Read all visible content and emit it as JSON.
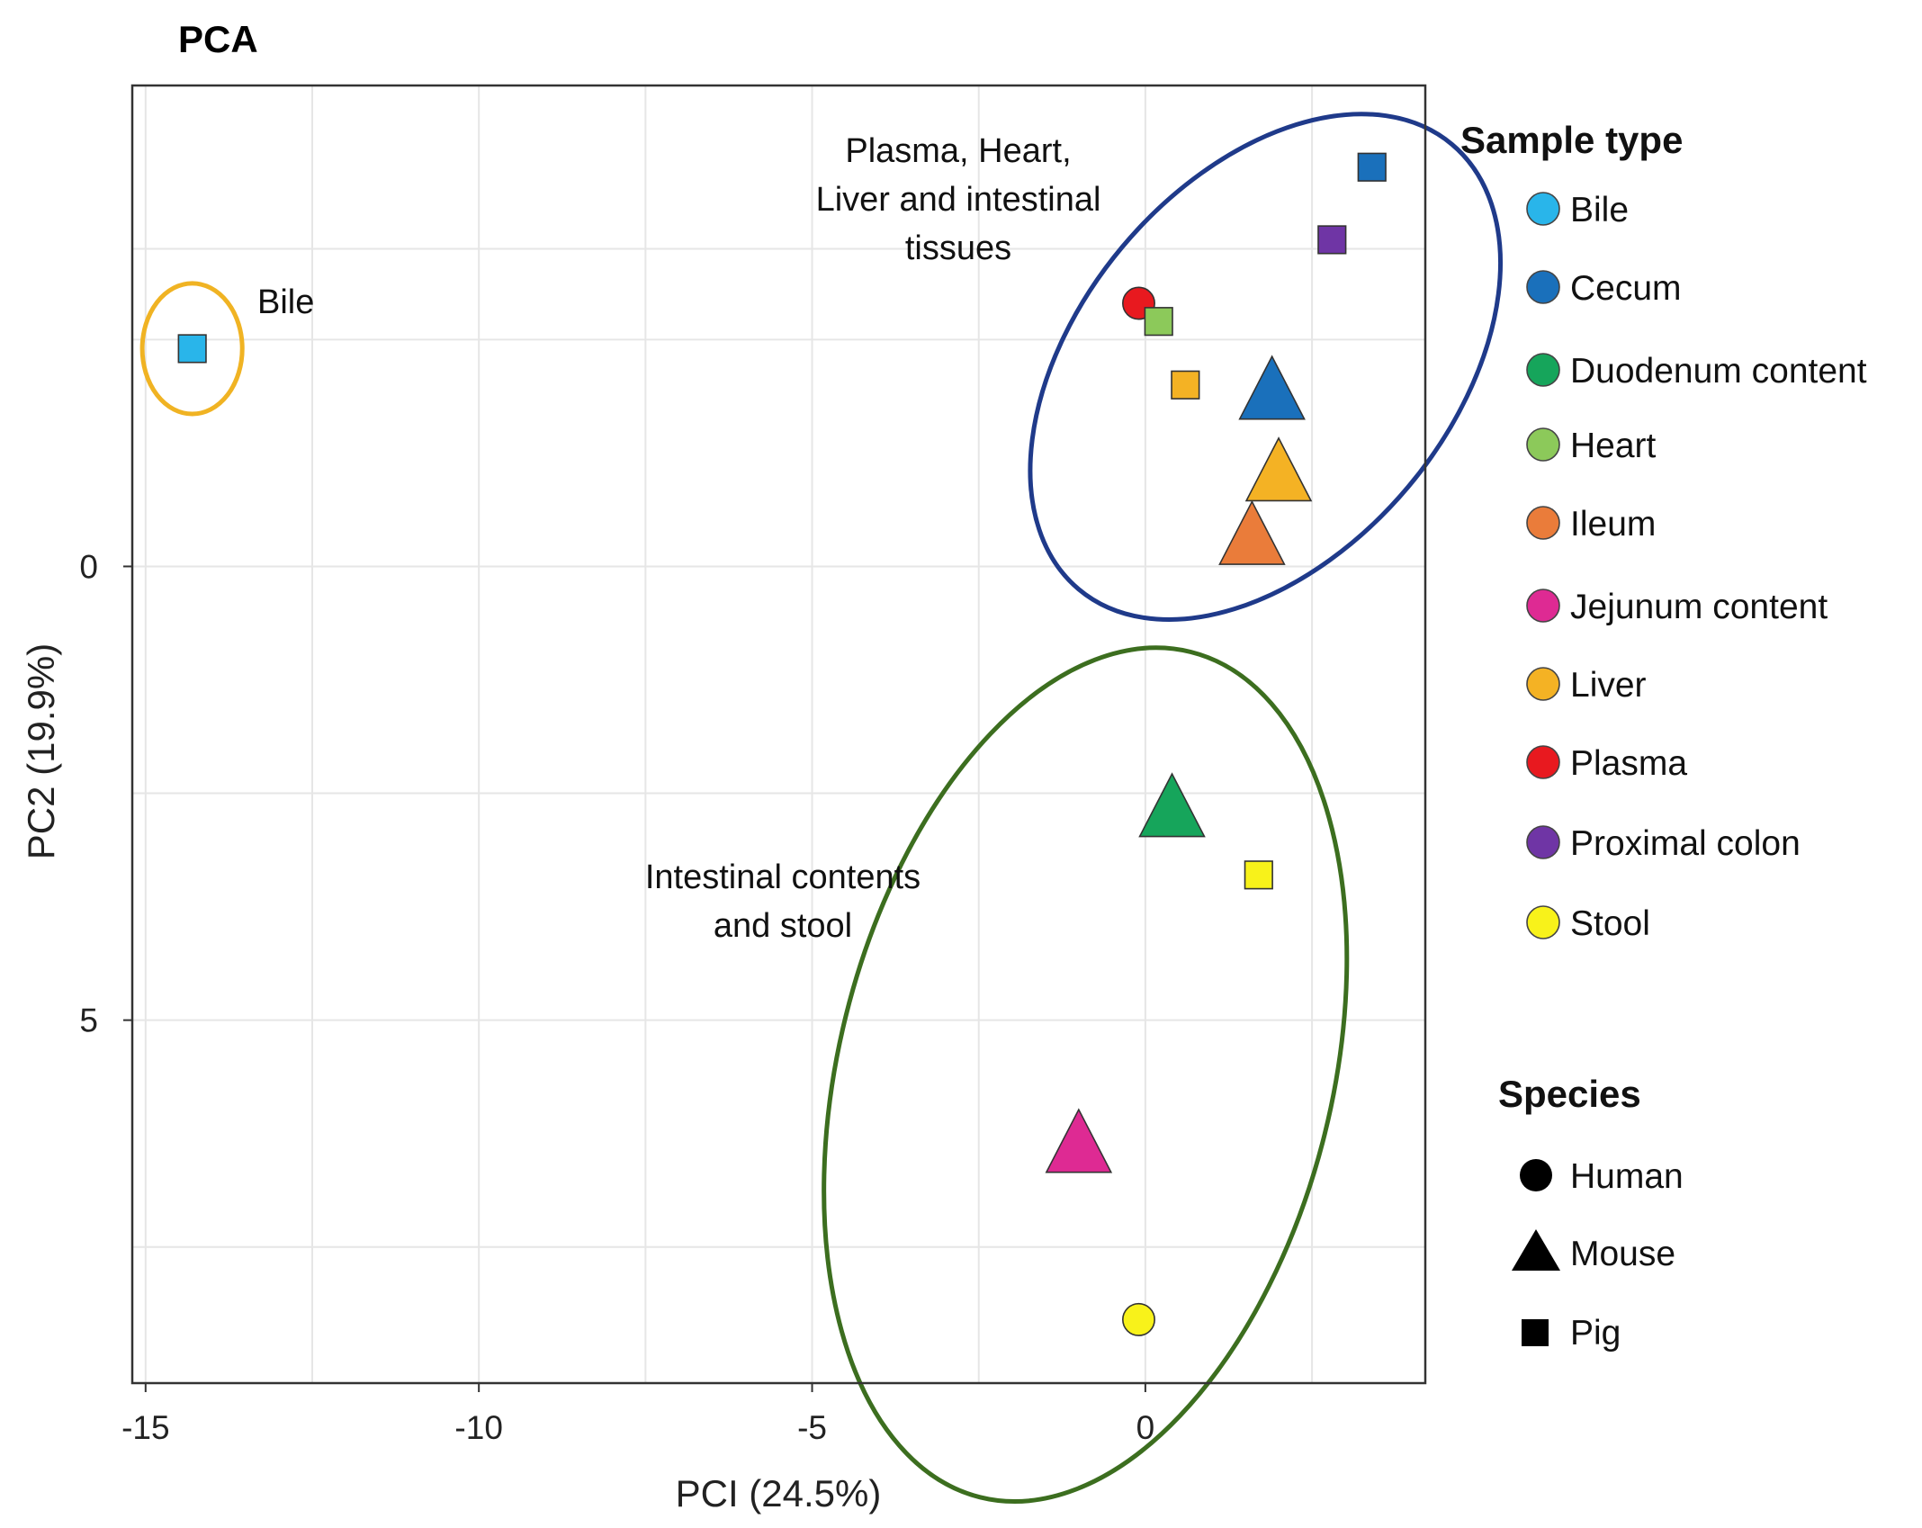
{
  "chart_data": {
    "type": "scatter",
    "title": "PCA",
    "xlabel": "PCI (24.5%)",
    "ylabel": "PC2 (19.9%)",
    "xlim": [
      -15.2,
      4.2
    ],
    "ylim": [
      9,
      -5.3
    ],
    "y_inverted": true,
    "grid": true,
    "x_ticks": [
      -15,
      -10,
      -5,
      0
    ],
    "x_tick_labels": [
      "-15",
      "-10",
      "-5",
      "0"
    ],
    "y_ticks": [
      0,
      5
    ],
    "y_tick_labels": [
      "0",
      "5"
    ],
    "points": [
      {
        "sample": "Bile",
        "species": "Pig",
        "x": -14.3,
        "y": -2.4
      },
      {
        "sample": "Cecum",
        "species": "Pig",
        "x": 3.4,
        "y": -4.4
      },
      {
        "sample": "Proximal colon",
        "species": "Pig",
        "x": 2.8,
        "y": -3.6
      },
      {
        "sample": "Plasma",
        "species": "Human",
        "x": -0.1,
        "y": -2.9
      },
      {
        "sample": "Heart",
        "species": "Pig",
        "x": 0.2,
        "y": -2.7
      },
      {
        "sample": "Liver",
        "species": "Pig",
        "x": 0.6,
        "y": -2.0
      },
      {
        "sample": "Cecum",
        "species": "Mouse",
        "x": 1.9,
        "y": -1.9
      },
      {
        "sample": "Liver",
        "species": "Mouse",
        "x": 2.0,
        "y": -1.0
      },
      {
        "sample": "Ileum",
        "species": "Mouse",
        "x": 1.6,
        "y": -0.3
      },
      {
        "sample": "Duodenum content",
        "species": "Mouse",
        "x": 0.4,
        "y": 2.7
      },
      {
        "sample": "Stool",
        "species": "Pig",
        "x": 1.7,
        "y": 3.4
      },
      {
        "sample": "Jejunum content",
        "species": "Mouse",
        "x": -1.0,
        "y": 6.4
      },
      {
        "sample": "Stool",
        "species": "Human",
        "x": -0.1,
        "y": 8.3
      }
    ],
    "ellipses": [
      {
        "label": "Plasma, Heart, Liver and intestinal tissues",
        "color": "#1f3a8a",
        "cx": 1.8,
        "cy": -2.2,
        "rx": 2.8,
        "ry": 3.2,
        "rotation_deg": 40
      },
      {
        "label": "Intestinal contents and stool",
        "color": "#3c6e1f",
        "cx": -0.9,
        "cy": 5.6,
        "rx": 3.7,
        "ry": 4.8,
        "rotation_deg": 14
      },
      {
        "label": "Bile",
        "color": "#f0b323",
        "cx": -14.3,
        "cy": -2.4,
        "rx": 0.75,
        "ry": 0.72,
        "rotation_deg": 0
      }
    ],
    "annotations": [
      {
        "id": "tissues",
        "lines": [
          "Plasma, Heart,",
          "Liver and intestinal",
          "tissues"
        ]
      },
      {
        "id": "contents",
        "lines": [
          "Intestinal contents",
          "and stool"
        ]
      },
      {
        "id": "bile",
        "lines": [
          "Bile"
        ]
      }
    ],
    "legend": {
      "sample_type_title": "Sample type",
      "sample_types": [
        {
          "name": "Bile",
          "color": "#29b5ea"
        },
        {
          "name": "Cecum",
          "color": "#1a70bb"
        },
        {
          "name": "Duodenum content",
          "color": "#16a55b"
        },
        {
          "name": "Heart",
          "color": "#8cc95a"
        },
        {
          "name": "Ileum",
          "color": "#ea7c3a"
        },
        {
          "name": "Jejunum content",
          "color": "#de2a93"
        },
        {
          "name": "Liver",
          "color": "#f4b224"
        },
        {
          "name": "Plasma",
          "color": "#e8191f"
        },
        {
          "name": "Proximal colon",
          "color": "#6f35a5"
        },
        {
          "name": "Stool",
          "color": "#f8f21a"
        }
      ],
      "species_title": "Species",
      "species": [
        {
          "name": "Human",
          "shape": "circle"
        },
        {
          "name": "Mouse",
          "shape": "triangle"
        },
        {
          "name": "Pig",
          "shape": "square"
        }
      ]
    }
  }
}
